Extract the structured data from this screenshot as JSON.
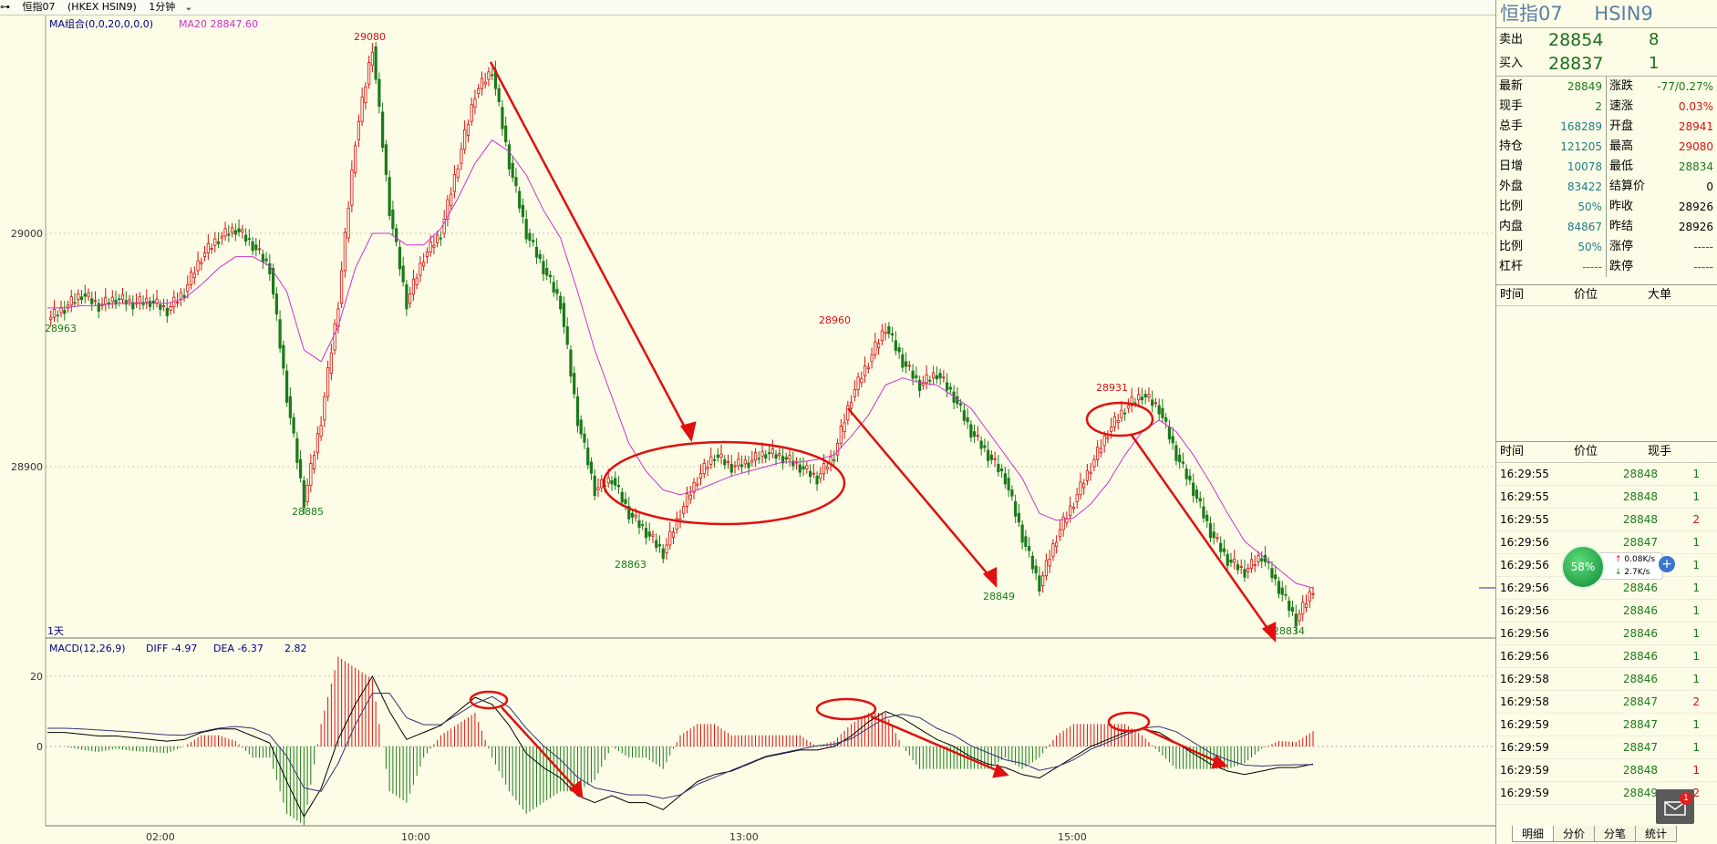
{
  "titlebar": {
    "icon": "link-icon",
    "name": "恒指07",
    "code": "(HKEX HSIN9)",
    "period": "1分钟"
  },
  "chart": {
    "ma_label": "MA组合(0,0,20,0,0,0)",
    "ma_value": "MA20 28847.60",
    "period_label": "1天",
    "macd_label": "MACD(12,26,9)",
    "diff_label": "DIFF -4.97",
    "dea_label": "DEA -6.37",
    "macd_value": "2.82",
    "y_ticks": [
      "29000",
      "28900"
    ],
    "macd_ticks": [
      "20",
      "0"
    ],
    "x_ticks": [
      "02:00",
      "10:00",
      "13:00",
      "15:00"
    ],
    "annotations": [
      "29080",
      "28885",
      "28863",
      "28960",
      "28849",
      "28931",
      "28834",
      "28963"
    ]
  },
  "chart_data": {
    "type": "line",
    "series": [
      {
        "name": "price",
        "values": [
          28963,
          28968,
          28974,
          28969,
          28972,
          28970,
          28971,
          28967,
          28975,
          28990,
          28998,
          29002,
          28995,
          28985,
          28930,
          28885,
          28920,
          28970,
          29040,
          29080,
          29010,
          28970,
          28990,
          29000,
          29030,
          29060,
          29070,
          29030,
          29000,
          28985,
          28970,
          28920,
          28890,
          28895,
          28880,
          28872,
          28863,
          28880,
          28895,
          28905,
          28900,
          28902,
          28906,
          28904,
          28900,
          28895,
          28905,
          28930,
          28945,
          28960,
          28945,
          28935,
          28940,
          28930,
          28915,
          28905,
          28895,
          28870,
          28849,
          28870,
          28885,
          28900,
          28915,
          28925,
          28931,
          28925,
          28905,
          28890,
          28872,
          28860,
          28855,
          28862,
          28848,
          28834,
          28848
        ]
      },
      {
        "name": "MA20",
        "values": [
          28968,
          28968,
          28969,
          28969,
          28970,
          28970,
          28970,
          28970,
          28972,
          28978,
          28985,
          28990,
          28990,
          28986,
          28975,
          28950,
          28945,
          28960,
          28985,
          29000,
          29000,
          28995,
          28995,
          29002,
          29015,
          29030,
          29040,
          29035,
          29025,
          29010,
          28998,
          28975,
          28950,
          28930,
          28910,
          28898,
          28890,
          28888,
          28890,
          28893,
          28896,
          28898,
          28900,
          28902,
          28902,
          28903,
          28905,
          28913,
          28922,
          28935,
          28938,
          28936,
          28935,
          28930,
          28925,
          28915,
          28905,
          28895,
          28880,
          28877,
          28878,
          28884,
          28893,
          28905,
          28915,
          28920,
          28915,
          28905,
          28893,
          28880,
          28868,
          28862,
          28856,
          28850,
          28848
        ]
      },
      {
        "name": "DIFF",
        "values": [
          4,
          4,
          3.5,
          3,
          3,
          2.5,
          2,
          1.5,
          2,
          4,
          5,
          5,
          3,
          1,
          -10,
          -20,
          -12,
          2,
          12,
          20,
          10,
          2,
          4,
          6,
          10,
          14,
          12,
          6,
          -2,
          -6,
          -9,
          -14,
          -16,
          -14,
          -16,
          -16,
          -18,
          -14,
          -10,
          -8,
          -7,
          -5,
          -3,
          -2,
          -1,
          -1,
          0,
          3,
          7,
          10,
          8,
          5,
          2,
          0,
          -3,
          -5,
          -6,
          -8,
          -9,
          -6,
          -3,
          0,
          2,
          4,
          5,
          4,
          1,
          -2,
          -5,
          -7,
          -8,
          -7,
          -6,
          -6,
          -5
        ]
      },
      {
        "name": "DEA",
        "values": [
          4,
          4,
          3.8,
          3.5,
          3.2,
          2.9,
          2.5,
          2.1,
          2,
          3,
          4,
          4.5,
          4,
          2,
          -4,
          -13,
          -14,
          -6,
          5,
          14,
          14,
          7,
          5,
          5,
          8,
          11,
          13,
          10,
          4,
          -1,
          -5,
          -10,
          -13,
          -14,
          -15,
          -15,
          -16,
          -15,
          -12,
          -10,
          -8,
          -6,
          -4,
          -3,
          -2,
          -1,
          -0.5,
          1,
          4,
          7,
          8,
          7,
          4,
          2,
          -1,
          -3,
          -5,
          -6,
          -8,
          -7,
          -5,
          -2,
          0,
          2,
          4,
          4.5,
          3,
          0,
          -3,
          -5,
          -6.5,
          -6.8,
          -6.5,
          -6.4,
          -6.37
        ]
      }
    ],
    "ylim": [
      28830,
      29100
    ],
    "macd_ylim": [
      -22,
      26
    ],
    "y_ticks": [
      29000,
      28900
    ],
    "highlights": [
      29080,
      28885,
      28863,
      28960,
      28849,
      28931,
      28834
    ]
  },
  "panel": {
    "title": "恒指07",
    "code": "HSIN9",
    "ask": {
      "label": "卖出",
      "price": "28854",
      "qty": "8"
    },
    "bid": {
      "label": "买入",
      "price": "28837",
      "qty": "1"
    },
    "quote_rows": [
      {
        "l1": "最新",
        "v1": "28849",
        "c1": "green",
        "l2": "涨跌",
        "v2": "-77/0.27%",
        "c2": "green"
      },
      {
        "l1": "现手",
        "v1": "2",
        "c1": "green",
        "l2": "速涨",
        "v2": "0.03%",
        "c2": "red"
      },
      {
        "l1": "总手",
        "v1": "168289",
        "c1": "teal",
        "l2": "开盘",
        "v2": "28941",
        "c2": "red"
      },
      {
        "l1": "持仓",
        "v1": "121205",
        "c1": "teal",
        "l2": "最高",
        "v2": "29080",
        "c2": "red"
      },
      {
        "l1": "日增",
        "v1": "10078",
        "c1": "teal",
        "l2": "最低",
        "v2": "28834",
        "c2": "green"
      },
      {
        "l1": "外盘",
        "v1": "83422",
        "c1": "teal",
        "l2": "结算价",
        "v2": "0",
        "c2": "black"
      },
      {
        "l1": "比例",
        "v1": "50%",
        "c1": "teal",
        "l2": "昨收",
        "v2": "28926",
        "c2": "black"
      },
      {
        "l1": "内盘",
        "v1": "84867",
        "c1": "teal",
        "l2": "昨结",
        "v2": "28926",
        "c2": "black"
      },
      {
        "l1": "比例",
        "v1": "50%",
        "c1": "teal",
        "l2": "涨停",
        "v2": "-----",
        "c2": "red"
      },
      {
        "l1": "杠杆",
        "v1": "-----",
        "c1": "teal",
        "l2": "跌停",
        "v2": "-----",
        "c2": "green"
      }
    ],
    "big_header": [
      "时间",
      "价位",
      "大单"
    ],
    "ticks_header": [
      "时间",
      "价位",
      "现手"
    ],
    "ticks": [
      {
        "t": "16:29:55",
        "p": "28848",
        "q": "1",
        "c": "green"
      },
      {
        "t": "16:29:55",
        "p": "28848",
        "q": "1",
        "c": "green"
      },
      {
        "t": "16:29:55",
        "p": "28848",
        "q": "2",
        "c": "red"
      },
      {
        "t": "16:29:56",
        "p": "28847",
        "q": "1",
        "c": "green"
      },
      {
        "t": "16:29:56",
        "p": "28846",
        "q": "1",
        "c": "green"
      },
      {
        "t": "16:29:56",
        "p": "28846",
        "q": "1",
        "c": "green"
      },
      {
        "t": "16:29:56",
        "p": "28846",
        "q": "1",
        "c": "green"
      },
      {
        "t": "16:29:56",
        "p": "28846",
        "q": "1",
        "c": "green"
      },
      {
        "t": "16:29:56",
        "p": "28846",
        "q": "1",
        "c": "green"
      },
      {
        "t": "16:29:58",
        "p": "28846",
        "q": "1",
        "c": "green"
      },
      {
        "t": "16:29:58",
        "p": "28847",
        "q": "2",
        "c": "red"
      },
      {
        "t": "16:29:59",
        "p": "28847",
        "q": "1",
        "c": "green"
      },
      {
        "t": "16:29:59",
        "p": "28847",
        "q": "1",
        "c": "green"
      },
      {
        "t": "16:29:59",
        "p": "28848",
        "q": "1",
        "c": "red"
      },
      {
        "t": "16:29:59",
        "p": "28849",
        "q": "2",
        "c": "red"
      }
    ],
    "tabs": [
      "明细",
      "分价",
      "分笔",
      "统计"
    ]
  },
  "floater": {
    "percent": "58%",
    "up": "0.08K/s",
    "down": "2.7K/s"
  },
  "mail": {
    "count": "1"
  },
  "colors": {
    "up": "#d81010",
    "down": "#1a7a1a",
    "ma": "#cc33cc",
    "arrow": "#e01010"
  }
}
